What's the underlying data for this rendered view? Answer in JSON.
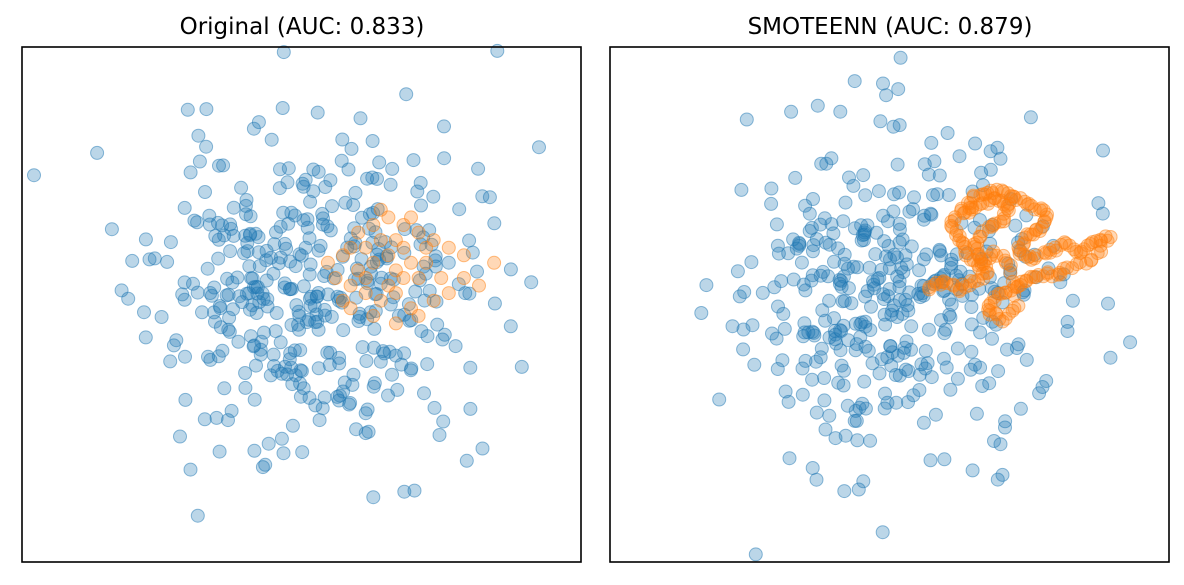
{
  "chart_data": [
    {
      "type": "scatter",
      "title": "Original (AUC: 0.833)",
      "xlabel": "",
      "ylabel": "",
      "xlim": [
        -3.8,
        3.6
      ],
      "ylim": [
        -3.6,
        3.2
      ],
      "grid": false,
      "colors": {
        "class_0": "#1f77b4",
        "class_1": "#ff7f0e"
      },
      "marker_alpha": 0.3,
      "seed": 11,
      "class_0_count": 420,
      "class_1_points": [
        [
          0.75,
          0.55
        ],
        [
          0.85,
          0.35
        ],
        [
          0.95,
          0.65
        ],
        [
          1.05,
          0.45
        ],
        [
          1.15,
          0.25
        ],
        [
          1.25,
          0.55
        ],
        [
          1.35,
          0.35
        ],
        [
          1.45,
          0.15
        ],
        [
          0.65,
          0.25
        ],
        [
          0.55,
          0.05
        ],
        [
          0.75,
          -0.05
        ],
        [
          0.95,
          -0.15
        ],
        [
          1.15,
          -0.05
        ],
        [
          1.35,
          -0.25
        ],
        [
          1.05,
          0.05
        ],
        [
          0.85,
          0.85
        ],
        [
          1.05,
          0.95
        ],
        [
          1.25,
          0.85
        ],
        [
          1.45,
          0.75
        ],
        [
          1.65,
          0.65
        ],
        [
          1.85,
          0.55
        ],
        [
          2.05,
          0.45
        ],
        [
          1.55,
          0.35
        ],
        [
          1.75,
          0.15
        ],
        [
          0.45,
          0.45
        ],
        [
          0.35,
          0.15
        ],
        [
          0.55,
          -0.25
        ],
        [
          0.85,
          -0.35
        ],
        [
          1.15,
          -0.45
        ],
        [
          1.45,
          -0.35
        ],
        [
          2.05,
          0.15
        ],
        [
          2.25,
          0.05
        ],
        [
          2.45,
          0.35
        ],
        [
          1.65,
          -0.15
        ],
        [
          0.65,
          0.75
        ],
        [
          1.35,
          0.95
        ],
        [
          0.95,
          1.05
        ],
        [
          1.15,
          0.65
        ],
        [
          0.75,
          0.15
        ],
        [
          1.25,
          0.15
        ],
        [
          1.55,
          0.55
        ],
        [
          0.55,
          0.55
        ],
        [
          0.45,
          -0.15
        ],
        [
          1.85,
          -0.05
        ],
        [
          0.25,
          0.35
        ]
      ]
    },
    {
      "type": "scatter",
      "title": "SMOTEENN (AUC: 0.879)",
      "xlabel": "",
      "ylabel": "",
      "xlim": [
        -3.8,
        3.6
      ],
      "ylim": [
        -3.6,
        3.2
      ],
      "grid": false,
      "colors": {
        "class_0": "#1f77b4",
        "class_1": "#ff7f0e"
      },
      "marker_alpha": 0.3,
      "seed": 29,
      "class_0_count": 410,
      "class_1_path": [
        [
          0.4,
          0.0
        ],
        [
          0.6,
          0.1
        ],
        [
          0.8,
          0.0
        ],
        [
          1.0,
          0.1
        ],
        [
          1.2,
          0.2
        ],
        [
          1.1,
          0.4
        ],
        [
          1.0,
          0.6
        ],
        [
          1.2,
          0.8
        ],
        [
          1.4,
          0.9
        ],
        [
          1.5,
          1.1
        ],
        [
          1.3,
          1.2
        ],
        [
          1.1,
          1.1
        ],
        [
          0.9,
          1.0
        ],
        [
          1.0,
          1.2
        ],
        [
          1.2,
          1.3
        ],
        [
          1.4,
          1.3
        ],
        [
          1.6,
          1.2
        ],
        [
          1.8,
          1.1
        ],
        [
          2.0,
          1.0
        ],
        [
          1.9,
          0.8
        ],
        [
          1.7,
          0.7
        ],
        [
          1.6,
          0.5
        ],
        [
          1.8,
          0.4
        ],
        [
          2.0,
          0.5
        ],
        [
          2.2,
          0.6
        ],
        [
          2.4,
          0.5
        ],
        [
          2.6,
          0.6
        ],
        [
          2.8,
          0.7
        ],
        [
          2.6,
          0.4
        ],
        [
          2.3,
          0.3
        ],
        [
          2.1,
          0.2
        ],
        [
          1.9,
          0.2
        ],
        [
          1.7,
          0.1
        ],
        [
          1.5,
          0.0
        ],
        [
          1.3,
          -0.1
        ],
        [
          1.2,
          -0.3
        ],
        [
          1.4,
          -0.4
        ],
        [
          1.6,
          -0.2
        ],
        [
          1.5,
          0.3
        ],
        [
          1.3,
          0.5
        ],
        [
          1.1,
          0.3
        ],
        [
          0.9,
          0.5
        ],
        [
          0.8,
          0.7
        ],
        [
          0.7,
          0.9
        ],
        [
          0.9,
          1.1
        ]
      ]
    }
  ]
}
